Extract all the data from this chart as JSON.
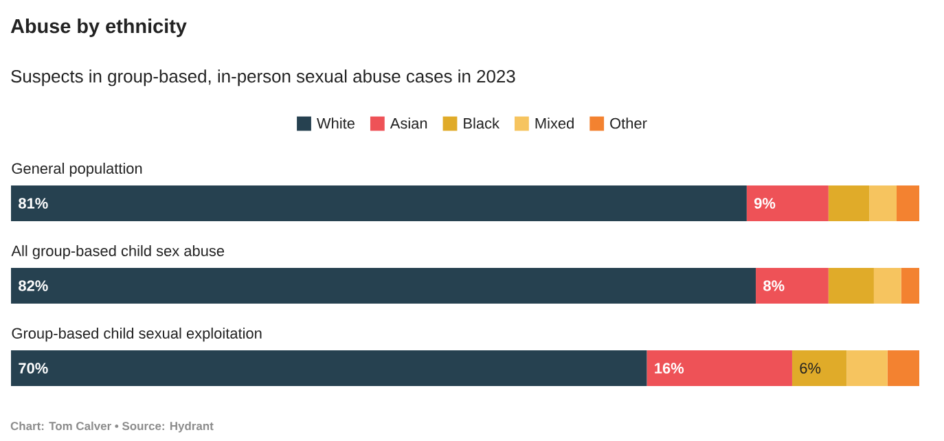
{
  "chart_data": {
    "type": "bar",
    "orientation": "horizontal",
    "stacked": true,
    "title": "Abuse by ethnicity",
    "subtitle": "Suspects in group-based, in-person sexual abuse cases in 2023",
    "categories": [
      "General populattion",
      "All group-based child sex abuse",
      "Group-based child sexual exploitation"
    ],
    "series": [
      {
        "name": "White",
        "color": "#264150",
        "values": [
          81,
          82,
          70
        ],
        "value_labels": [
          "81%",
          "82%",
          "70%"
        ]
      },
      {
        "name": "Asian",
        "color": "#ee5257",
        "values": [
          9,
          8,
          16
        ],
        "value_labels": [
          "9%",
          "8%",
          "16%"
        ]
      },
      {
        "name": "Black",
        "color": "#e0ab29",
        "values": [
          4.5,
          5,
          6
        ],
        "value_labels": [
          null,
          null,
          "6%"
        ]
      },
      {
        "name": "Mixed",
        "color": "#f6c45f",
        "values": [
          3,
          3,
          4.5
        ],
        "value_labels": [
          null,
          null,
          null
        ]
      },
      {
        "name": "Other",
        "color": "#f38230",
        "values": [
          2.5,
          2,
          3.5
        ],
        "value_labels": [
          null,
          null,
          null
        ]
      }
    ],
    "legend": "top",
    "annotations": [
      "Chart: Tom Calver • Source: Hydrant"
    ]
  }
}
